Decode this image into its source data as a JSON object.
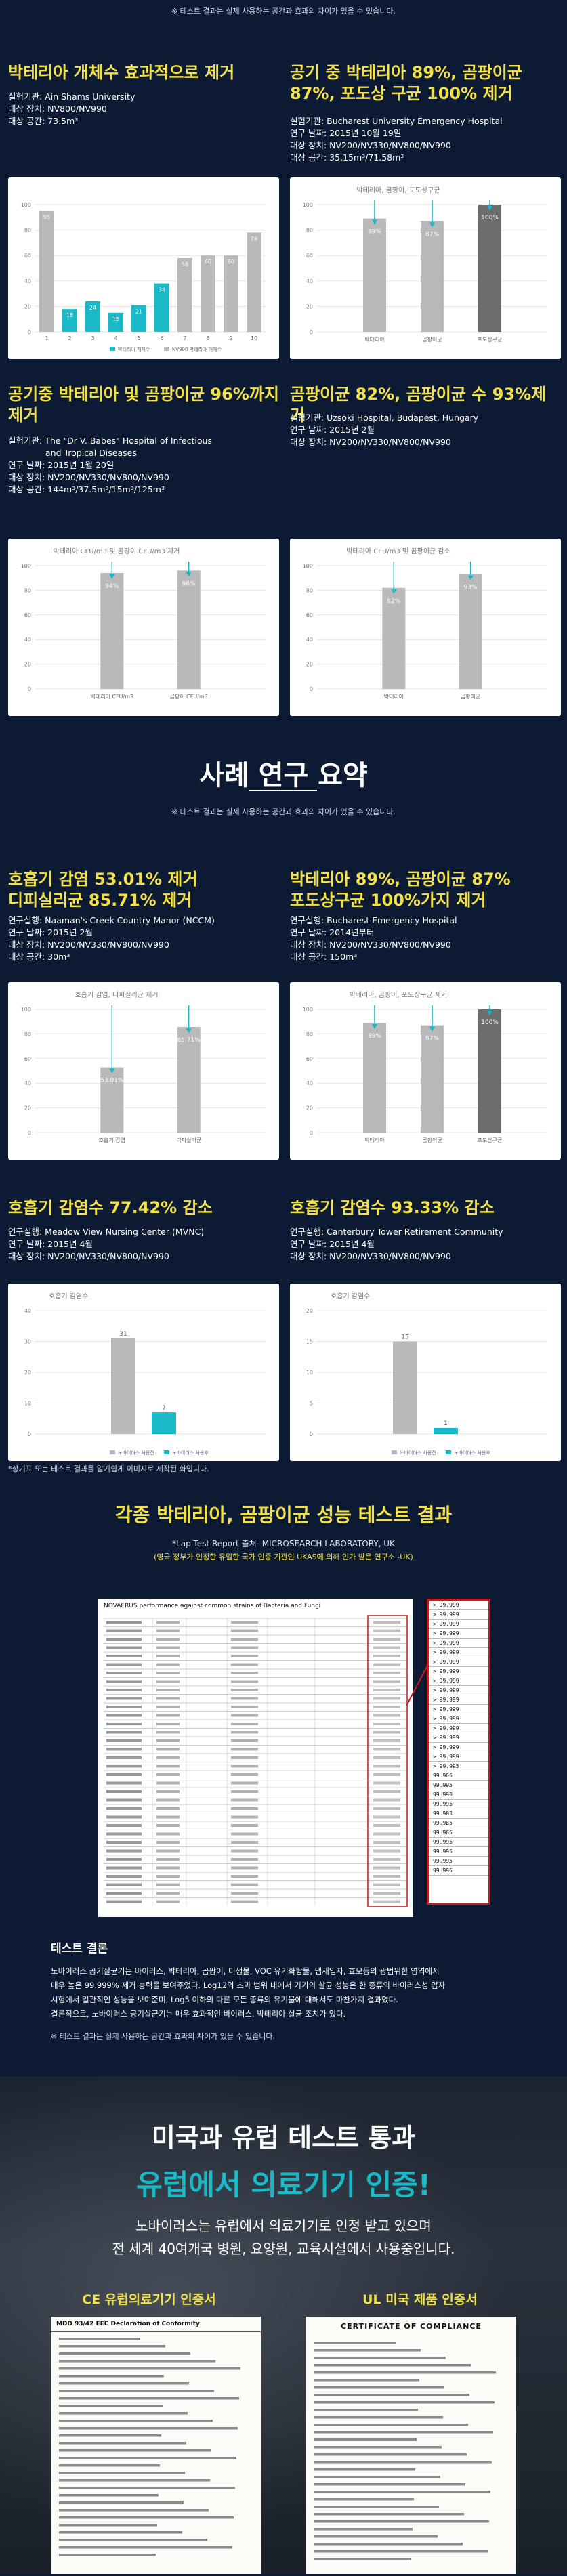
{
  "top_note": "※ 테스트 결과는 실제 사용하는 공간과 효과의 차이가 있을 수 있습니다.",
  "colors": {
    "bg": "#0d1a33",
    "yellow": "#f3e14a",
    "teal": "#19b9c7",
    "grey_bar": "#b9b9b9",
    "dark_bar": "#6d6d6d"
  },
  "s1": {
    "left": {
      "title": "박테리아 개체수 효과적으로 제거",
      "lines": [
        "실험기관: Ain Shams University",
        "대상 장치: NV800/NV990",
        "대상 공간: 73.5m³"
      ]
    },
    "right": {
      "title": "공기 중 박테리아 89%, 곰팡이균 87%, 포도상 구균 100% 제거",
      "lines": [
        "실험기관: Bucharest University Emergency Hospital",
        "연구 날짜: 2015년 10월 19일",
        "대상 장치: NV200/NV330/NV800/NV990",
        "대상 공간: 35.15m³/71.58m³"
      ]
    }
  },
  "s2": {
    "left": {
      "title": "공기중 박테리아 및 곰팡이균 96%까지 제거",
      "lines": [
        "실험기관: The \"Dr V. Babes\" Hospital of Infectious",
        "and Tropical Diseases",
        "연구 날짜: 2015년 1월 20일",
        "대상 장치: NV200/NV330/NV800/NV990",
        "대상 공간: 144m³/37.5m³/15m³/125m³"
      ]
    },
    "right": {
      "title": "곰팡이균 82%, 곰팡이균 수 93%제거",
      "lines": [
        "실험기관: Uzsoki Hospital, Budapest, Hungary",
        "연구 날짜: 2015년 2월",
        "대상 장치: NV200/NV330/NV800/NV990"
      ]
    }
  },
  "summary": {
    "title": "사례 연구 요약",
    "note": "※ 테스트 결과는 실제 사용하는 공간과 효과의 차이가 있을 수 있습니다."
  },
  "s3": {
    "left": {
      "title1": "호흡기 감염 53.01% 제거",
      "title2": "디피실리균 85.71% 제거",
      "lines": [
        "연구실행: Naaman's Creek Country Manor (NCCM)",
        "연구 날짜: 2015년 2월",
        "대상 장치: NV200/NV330/NV800/NV990",
        "대상 공간: 30m³"
      ]
    },
    "right": {
      "title1": "박테리아 89%, 곰팡이균 87%",
      "title2": "포도상구균 100%가지 제거",
      "lines": [
        "연구실행: Bucharest Emergency Hospital",
        "연구 날짜: 2014년부터",
        "대상 장치: NV200/NV330/NV800/NV990",
        "대상 공간: 150m³"
      ]
    }
  },
  "s4": {
    "left": {
      "title": "호흡기 감염수 77.42% 감소",
      "lines": [
        "연구실행: Meadow View Nursing Center (MVNC)",
        "연구 날짜: 2015년 4월",
        "대상 장치: NV200/NV330/NV800/NV990"
      ]
    },
    "right": {
      "title": "호흡기 감염수 93.33% 감소",
      "lines": [
        "연구실행: Canterbury Tower Retirement Community",
        "연구 날짜: 2015년 4월",
        "대상 장치: NV200/NV330/NV800/NV990"
      ]
    },
    "footnote": "*상기표 또는 테스트 결과를 알기쉽게 이미지로 제작된 화입니다."
  },
  "lab": {
    "title": "각종 박테리아, 곰팡이균 성능 테스트 결과",
    "line1": "*Lap Test Report 출처-  MICROSEARCH LABORATORY, UK",
    "line2": "(영국 정부가 인정한 유일한 국가 인증 기관인 UKAS에 의해 인가 받은 연구소 -UK)",
    "report_heading": "NOVAERUS performance against common strains of Bacteria and Fungi",
    "results": [
      "> 99.999",
      "> 99.999",
      "> 99.999",
      "> 99.999",
      "> 99.999",
      "> 99.999",
      "> 99.999",
      "> 99.999",
      "> 99.999",
      "> 99.999",
      "> 99.999",
      "> 99.999",
      "> 99.999",
      "> 99.999",
      "> 99.999",
      "> 99.999",
      "> 99.999",
      "> 99.995",
      "99.965",
      "99.995",
      "99.993",
      "99.995",
      "99.983",
      "99.985",
      "99.985",
      "99.995",
      "99.995",
      "99.995",
      "99.995"
    ]
  },
  "conclusion": {
    "title": "테스트 결론",
    "para": [
      "노바이러스 공기살균기는 바이러스, 박테리아, 곰팡이, 미생물, VOC 유기화합물, 냄새입자, 효모등의 광범위한 영역에서",
      "매우 높은 99.999% 제거 능력을 보여주었다. Log12의 초과 범위 내에서 기기의 살균 성능은 한 종류의 바이러스성 입자",
      "시험에서 일관적인 성능을 보여준며, Log5 이하의 다른 모든 종류의 유기물에 대해서도 마찬가지 결과였다.",
      "결론적으로, 노바이러스 공기살균기는 매우 효과적인 바이러스, 박테리아 살균 조치가 있다."
    ],
    "note": "※ 테스트 결과는 실제 사용하는 공간과 효과의 차이가 있을 수 있습니다."
  },
  "usa": {
    "line1": "미국과 유럽 테스트 통과",
    "line2": "유럽에서 의료기기 인증!",
    "desc1": "노바이러스는 유럽에서 의료기기로 인정 받고 있으며",
    "desc2": "전 세계 40여개국 병원, 요양원, 교육시설에서 사용중입니다.",
    "ce_label": "CE 유럽의료기기 인증서",
    "ul_label": "UL 미국 제품 인증서",
    "ce_heading": "MDD 93/42 EEC Declaration of Conformity",
    "ul_heading": "CERTIFICATE OF COMPLIANCE"
  },
  "chart_data": [
    {
      "type": "bar",
      "categories": [
        "1",
        "2",
        "3",
        "4",
        "5",
        "6",
        "7",
        "8",
        "9",
        "10"
      ],
      "series": [
        {
          "name": "박테리아 개체수",
          "values": [
            95,
            23,
            23,
            15,
            21,
            40,
            58,
            60,
            60,
            78
          ]
        },
        {
          "name": "NV800 박테리아 개체수",
          "values": [
            null,
            18,
            24,
            15,
            21,
            38,
            null,
            null,
            null,
            null
          ]
        }
      ],
      "ylim": [
        0,
        100
      ]
    },
    {
      "type": "bar",
      "title": "박테리아, 곰팡이, 포도상구균",
      "categories": [
        "박테리아",
        "곰팡이균",
        "포도상구균"
      ],
      "values": [
        89,
        87,
        100
      ],
      "ylim": [
        0,
        100
      ]
    },
    {
      "type": "bar",
      "title": "박테리아 CFU/m3 및 곰팡이 CFU/m3 제거",
      "categories": [
        "박테리아 CFU/m3",
        "곰팡이 CFU/m3"
      ],
      "values": [
        94,
        96
      ],
      "ylim": [
        0,
        100
      ]
    },
    {
      "type": "bar",
      "title": "박테리아 CFU/m3 및 곰팡이균 감소",
      "categories": [
        "박테리아",
        "곰팡이균"
      ],
      "values": [
        82,
        93
      ],
      "ylim": [
        0,
        100
      ]
    },
    {
      "type": "bar",
      "title": "호흡기 감염, 디피실리균 제거",
      "categories": [
        "호흡기 감염",
        "디피실리균"
      ],
      "values": [
        53.01,
        85.71
      ],
      "ylim": [
        0,
        100
      ]
    },
    {
      "type": "bar",
      "title": "박테리아, 곰팡이, 포도상구균 제거",
      "categories": [
        "박테리아",
        "곰팡이균",
        "포도상구균"
      ],
      "values": [
        89,
        87,
        100
      ],
      "ylim": [
        0,
        100
      ]
    },
    {
      "type": "bar",
      "title": "호흡기 감염수",
      "series": [
        {
          "name": "노바이러스 사용전",
          "values": [
            31
          ]
        },
        {
          "name": "노바이러스 사용후",
          "values": [
            7
          ]
        }
      ],
      "ylim": [
        0,
        40
      ]
    },
    {
      "type": "bar",
      "title": "호흡기 감염수",
      "series": [
        {
          "name": "노바이러스 사용전",
          "values": [
            15
          ]
        },
        {
          "name": "노바이러스 사용후",
          "values": [
            1
          ]
        }
      ],
      "ylim": [
        0,
        20
      ]
    }
  ]
}
